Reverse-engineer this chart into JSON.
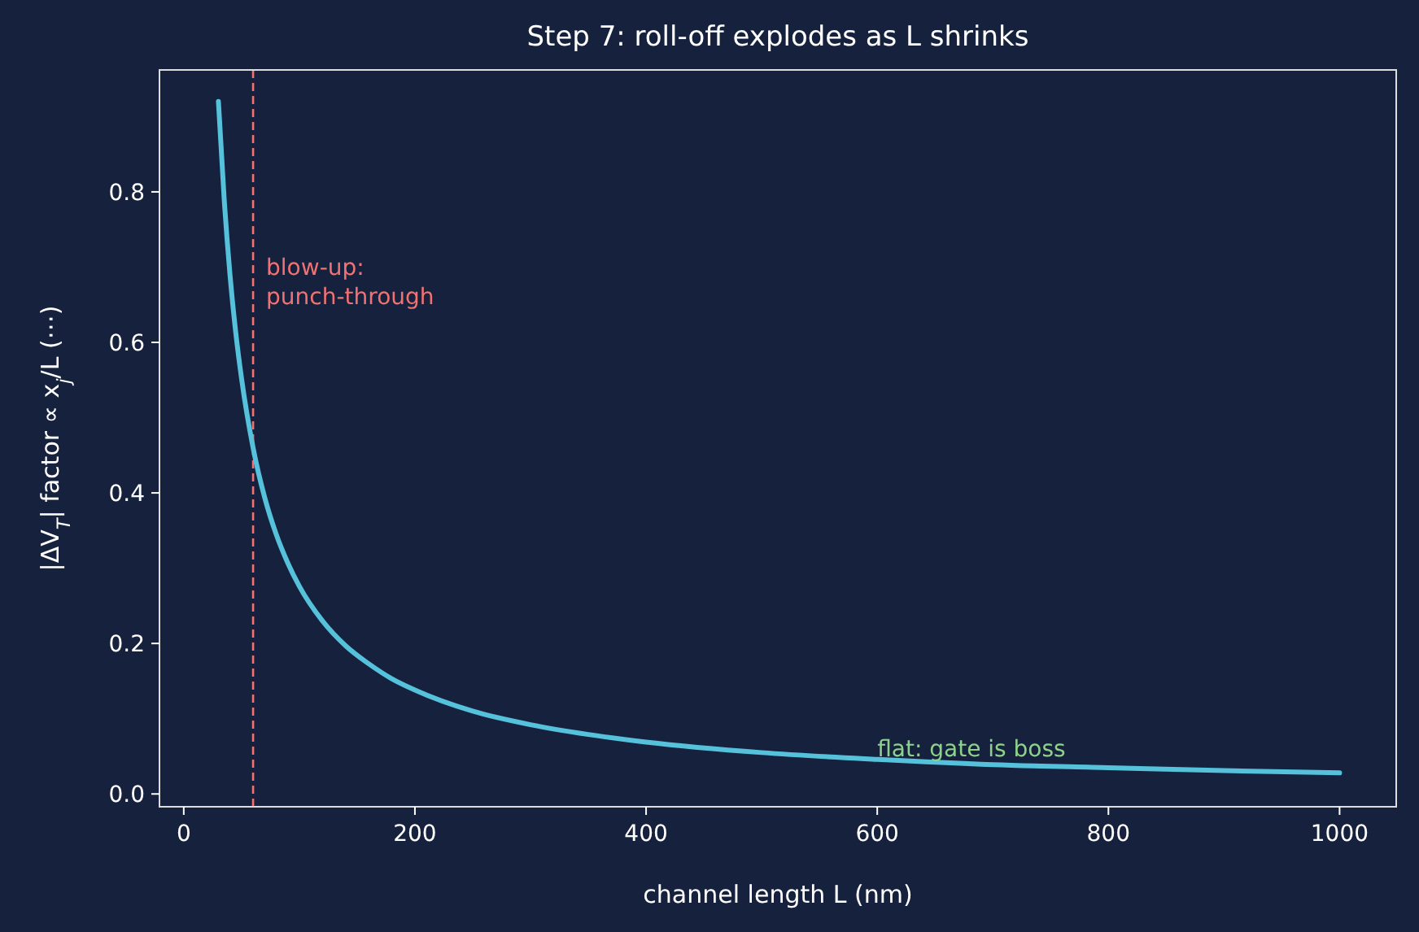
{
  "chart_data": {
    "type": "line",
    "title": "Step 7: roll-off explodes as L shrinks",
    "xlabel": "channel length L (nm)",
    "ylabel": "|ΔV$_{T}$| factor  ∝ x$_{j}$/L (⋯)",
    "x": [
      30,
      35,
      40,
      45,
      50,
      60,
      70,
      80,
      90,
      100,
      120,
      140,
      160,
      180,
      200,
      250,
      300,
      350,
      400,
      500,
      600,
      700,
      800,
      900,
      1000
    ],
    "series": [
      {
        "color": "#56c1da",
        "values": [
          0.92,
          0.79,
          0.69,
          0.613,
          0.552,
          0.46,
          0.394,
          0.345,
          0.307,
          0.276,
          0.23,
          0.197,
          0.173,
          0.153,
          0.138,
          0.11,
          0.092,
          0.079,
          0.069,
          0.055,
          0.046,
          0.039,
          0.035,
          0.031,
          0.028
        ]
      }
    ],
    "xlim": [
      -21,
      1049
    ],
    "xticks": [
      0,
      200,
      400,
      600,
      800,
      1000
    ],
    "ylim": [
      -0.017,
      0.962
    ],
    "yticks": [
      {
        "value": 0,
        "label": "0.0"
      },
      {
        "value": 0.2,
        "label": "0.2"
      },
      {
        "value": 0.4,
        "label": "0.4"
      },
      {
        "value": 0.6,
        "label": "0.6"
      },
      {
        "value": 0.8,
        "label": "0.8"
      }
    ],
    "grid": false,
    "marker": "none",
    "line_style": "solid",
    "ref_lines": [
      {
        "axis": "x",
        "value": 60,
        "color": "#f07272",
        "line_style": "dashed"
      }
    ],
    "annotations": [
      "blow-up:\npunch-through",
      {
        "text": "flat: gate is boss",
        "x": 600,
        "y": 0.05
      }
    ]
  }
}
